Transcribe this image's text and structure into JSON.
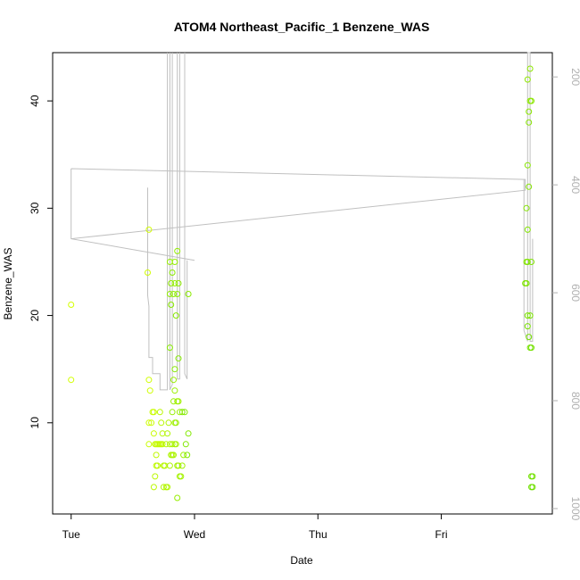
{
  "chart_data": {
    "type": "scatter",
    "title": "ATOM4 Northeast_Pacific_1 Benzene_WAS",
    "xlabel": "Date",
    "ylabel": "Benzene_WAS",
    "x_ticks": [
      "Tue",
      "Wed",
      "Thu",
      "Fri"
    ],
    "x_tick_positions_days": [
      0,
      1,
      2,
      3
    ],
    "xlim_days": [
      -0.15,
      3.9
    ],
    "ylim": [
      1.5,
      44.5
    ],
    "y_ticks": [
      10,
      20,
      30,
      40
    ],
    "right_axis": {
      "label": "",
      "ticks": [
        200,
        400,
        600,
        800,
        1000
      ],
      "lim": [
        1010,
        155
      ],
      "color": "#b0b0b0"
    },
    "grid": false,
    "series": [
      {
        "kind": "points",
        "marker": "open-circle",
        "color_start": "#d4ff00",
        "color_end": "#7fe800",
        "points": [
          [
            0.0,
            21
          ],
          [
            0.0,
            14
          ],
          [
            0.63,
            28
          ],
          [
            0.62,
            24
          ],
          [
            0.63,
            14
          ],
          [
            0.64,
            13
          ],
          [
            0.63,
            10
          ],
          [
            0.65,
            10
          ],
          [
            0.66,
            11
          ],
          [
            0.67,
            11
          ],
          [
            0.63,
            8
          ],
          [
            0.67,
            9
          ],
          [
            0.68,
            8
          ],
          [
            0.69,
            8
          ],
          [
            0.7,
            8
          ],
          [
            0.71,
            8
          ],
          [
            0.72,
            8
          ],
          [
            0.73,
            8
          ],
          [
            0.74,
            8
          ],
          [
            0.69,
            7
          ],
          [
            0.69,
            6
          ],
          [
            0.7,
            6
          ],
          [
            0.68,
            5
          ],
          [
            0.67,
            4
          ],
          [
            0.72,
            11
          ],
          [
            0.73,
            10
          ],
          [
            0.74,
            9
          ],
          [
            0.75,
            6
          ],
          [
            0.76,
            6
          ],
          [
            0.77,
            8
          ],
          [
            0.75,
            4
          ],
          [
            0.77,
            4
          ],
          [
            0.78,
            4
          ],
          [
            0.78,
            9
          ],
          [
            0.79,
            10
          ],
          [
            0.8,
            8
          ],
          [
            0.81,
            7
          ],
          [
            0.8,
            6
          ],
          [
            0.82,
            7
          ],
          [
            0.83,
            7
          ],
          [
            0.82,
            8
          ],
          [
            0.84,
            8
          ],
          [
            0.85,
            8
          ],
          [
            0.86,
            6
          ],
          [
            0.87,
            6
          ],
          [
            0.88,
            5
          ],
          [
            0.89,
            5
          ],
          [
            0.9,
            6
          ],
          [
            0.91,
            7
          ],
          [
            0.86,
            12
          ],
          [
            0.87,
            12
          ],
          [
            0.88,
            11
          ],
          [
            0.84,
            10
          ],
          [
            0.85,
            10
          ],
          [
            0.83,
            12
          ],
          [
            0.84,
            13
          ],
          [
            0.83,
            14
          ],
          [
            0.82,
            11
          ],
          [
            0.86,
            3
          ],
          [
            0.8,
            25
          ],
          [
            0.84,
            25
          ],
          [
            0.86,
            26
          ],
          [
            0.81,
            23
          ],
          [
            0.84,
            23
          ],
          [
            0.87,
            23
          ],
          [
            0.8,
            22
          ],
          [
            0.83,
            22
          ],
          [
            0.86,
            22
          ],
          [
            0.95,
            22
          ],
          [
            0.81,
            21
          ],
          [
            0.82,
            24
          ],
          [
            0.85,
            20
          ],
          [
            0.8,
            17
          ],
          [
            0.84,
            15
          ],
          [
            0.87,
            16
          ],
          [
            0.92,
            11
          ],
          [
            0.95,
            9
          ],
          [
            0.94,
            7
          ],
          [
            0.93,
            8
          ],
          [
            0.9,
            11
          ]
        ]
      },
      {
        "kind": "points",
        "marker": "open-circle",
        "color_start": "#8fe800",
        "color_end": "#6fe000",
        "points": [
          [
            3.7,
            42
          ],
          [
            3.72,
            43
          ],
          [
            3.72,
            40
          ],
          [
            3.73,
            40
          ],
          [
            3.71,
            39
          ],
          [
            3.71,
            38
          ],
          [
            3.7,
            34
          ],
          [
            3.71,
            32
          ],
          [
            3.69,
            30
          ],
          [
            3.7,
            28
          ],
          [
            3.69,
            25
          ],
          [
            3.7,
            25
          ],
          [
            3.73,
            25
          ],
          [
            3.68,
            23
          ],
          [
            3.69,
            23
          ],
          [
            3.7,
            20
          ],
          [
            3.72,
            20
          ],
          [
            3.7,
            19
          ],
          [
            3.71,
            18
          ],
          [
            3.72,
            17
          ],
          [
            3.73,
            17
          ],
          [
            3.73,
            5
          ],
          [
            3.74,
            5
          ],
          [
            3.73,
            4
          ],
          [
            3.74,
            4
          ]
        ]
      },
      {
        "kind": "line",
        "axis": "right",
        "color": "#c0c0c0",
        "points": [
          [
            0.0,
            370
          ],
          [
            3.68,
            390
          ],
          [
            3.68,
            410
          ],
          [
            0.0,
            500
          ],
          [
            0.0,
            370
          ],
          [
            0.0,
            500
          ],
          [
            1.0,
            540
          ]
        ]
      }
    ]
  }
}
